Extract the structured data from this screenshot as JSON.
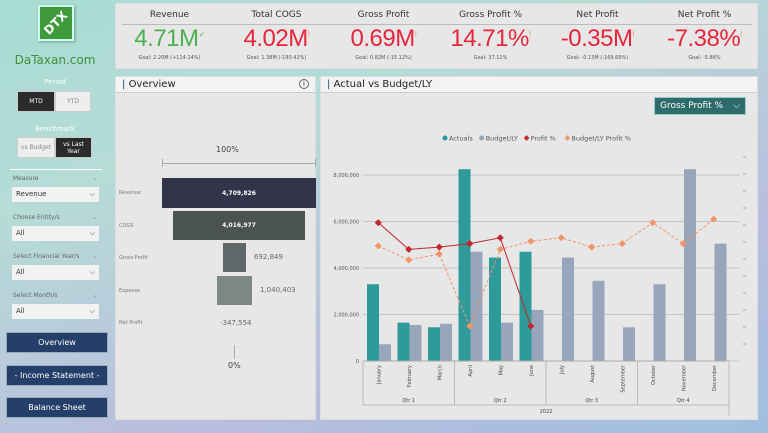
{
  "logo": {
    "mark": "DTX",
    "site": "DaTaxan.com"
  },
  "filters": {
    "period": {
      "label": "Period",
      "options": [
        "MTD",
        "YTD"
      ],
      "selected": "MTD"
    },
    "benchmark": {
      "label": "Benchmark",
      "options": [
        "vs Budget",
        "vs Last Year"
      ],
      "selected": "vs Last Year"
    },
    "slicers": [
      {
        "label": "Measure",
        "value": "Revenue"
      },
      {
        "label": "Choose Entity/s",
        "value": "All"
      },
      {
        "label": "Select Financial Year/s",
        "value": "All"
      },
      {
        "label": "Select Month/s",
        "value": "All"
      }
    ]
  },
  "nav": [
    "Overview",
    "- Income Statement -",
    "Balance Sheet"
  ],
  "kpis": [
    {
      "title": "Revenue",
      "value": "4.71M",
      "indicator": "✓",
      "goal": "Goal: 2.20M (+114.14%)",
      "color": "#4caf50"
    },
    {
      "title": "Total COGS",
      "value": "4.02M",
      "indicator": "!",
      "goal": "Goal: 1.38M (-190.42%)",
      "color": "#e8243c"
    },
    {
      "title": "Gross Profit",
      "value": "0.69M",
      "indicator": "!",
      "goal": "Goal: 0.82M (-15.12%)",
      "color": "#e8243c"
    },
    {
      "title": "Gross Profit %",
      "value": "14.71%",
      "indicator": "!",
      "goal": "Goal: 37.11%",
      "color": "#e8243c"
    },
    {
      "title": "Net Profit",
      "value": "-0.35M",
      "indicator": "!",
      "goal": "Goal: -0.13M (-169.69%)",
      "color": "#e8243c"
    },
    {
      "title": "Net Profit %",
      "value": "-7.38%",
      "indicator": "!",
      "goal": "Goal: -5.86%",
      "color": "#e8243c"
    }
  ],
  "overview": {
    "title": "Overview",
    "top_label": "100%",
    "bottom_label": "0%",
    "rows": [
      {
        "label": "Revenue",
        "value": "4,709,826"
      },
      {
        "label": "COGS",
        "value": "4,016,977"
      },
      {
        "label": "Gross Profit",
        "value": "692,849"
      },
      {
        "label": "Expense",
        "value": "1,040,403"
      },
      {
        "label": "Net Profit",
        "value": "-347,554"
      }
    ]
  },
  "chart_panel": {
    "title": "Actual vs Budget/LY",
    "dropdown": "Gross Profit %"
  },
  "chart_data": {
    "type": "bar",
    "categories": [
      "January",
      "February",
      "March",
      "April",
      "May",
      "June",
      "July",
      "August",
      "September",
      "October",
      "November",
      "December"
    ],
    "quarters": [
      "Qtr 1",
      "Qtr 2",
      "Qtr 3",
      "Qtr 4"
    ],
    "year": "2022",
    "ylim": [
      0,
      8000000
    ],
    "yticks": [
      "0",
      "2,000,000",
      "4,000,000",
      "6,000,000",
      "8,000,000"
    ],
    "grid": true,
    "legend": "top-center",
    "series": [
      {
        "name": "Actuals",
        "kind": "bar",
        "color": "#2e9a9a",
        "values": [
          3300000,
          1650000,
          1450000,
          8250000,
          4450000,
          4700000,
          null,
          null,
          null,
          null,
          null,
          null
        ]
      },
      {
        "name": "Budget/LY",
        "kind": "bar",
        "color": "#98a6bb",
        "values": [
          720000,
          1550000,
          1600000,
          4700000,
          1650000,
          2200000,
          4450000,
          3450000,
          1450000,
          3300000,
          8250000,
          5050000
        ]
      },
      {
        "name": "Profit %",
        "kind": "line",
        "color": "#c0282d",
        "values": [
          5950000,
          4800000,
          4900000,
          5050000,
          5300000,
          1500000,
          null,
          null,
          null,
          null,
          null,
          null
        ]
      },
      {
        "name": "Budget/LY Profit %",
        "kind": "line-dashed",
        "color": "#f0946a",
        "values": [
          4950000,
          4350000,
          4600000,
          1500000,
          4800000,
          5150000,
          5300000,
          4900000,
          5050000,
          5950000,
          5050000,
          6100000
        ]
      }
    ]
  }
}
